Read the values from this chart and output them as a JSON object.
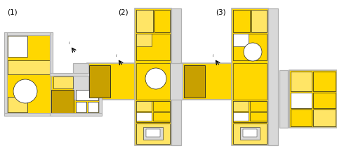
{
  "background_color": "#ffffff",
  "labels": [
    "(1)",
    "(2)",
    "(3)"
  ],
  "yellow": "#FFD700",
  "yellow_light": "#FFE566",
  "yellow_dark": "#C8A000",
  "gray_wall": "#B0B0B0",
  "gray_light": "#D8D8D8",
  "white": "#FFFFFF",
  "black": "#222222",
  "figsize": [
    4.8,
    2.18
  ],
  "dpi": 100
}
